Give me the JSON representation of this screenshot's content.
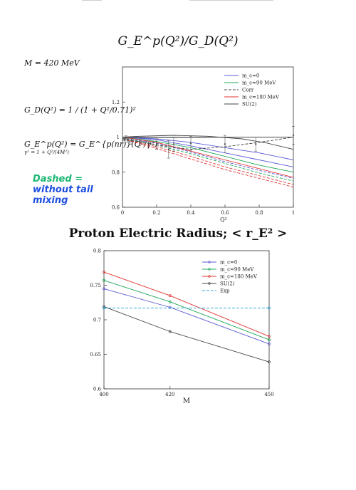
{
  "page": {
    "title": "G_E^p(Q²)/G_D(Q²)",
    "mass_label": "M = 420 MeV",
    "dipole_formula": "G_D(Q²) = 1 / (1 + Q²/0.71)²",
    "ge_formula": "G_E^p(Q²) = G_E^{p(nr)}(Q²/γ²)",
    "gamma_formula": "γ² = 1 + Q²/(4M²)",
    "note_line1": "Dashed =",
    "note_line2": "without tail",
    "note_line3": "mixing",
    "section_title": "Proton Electric Radius; < r_E² >"
  },
  "chart_data": [
    {
      "type": "line",
      "title": "G_E^p(Q²)/G_D(Q²)",
      "xlabel": "Q²",
      "ylabel": "",
      "xlim": [
        0,
        1
      ],
      "ylim": [
        0.6,
        1.4
      ],
      "xticks": [
        "0",
        "0.2",
        "0.4",
        "0.6",
        "0.8",
        "1"
      ],
      "yticks": [
        "0.6",
        "0.8",
        "1",
        "1.2"
      ],
      "legend_position": "top-right",
      "legend": [
        {
          "label": "m_c=0",
          "color": "#5b5bd6",
          "dash": "solid"
        },
        {
          "label": "m_c=90 MeV",
          "color": "#1ea85a",
          "dash": "solid"
        },
        {
          "label": "Corr",
          "color": "#444444",
          "dash": "dashed"
        },
        {
          "label": "m_c=180 MeV",
          "color": "#e03434",
          "dash": "solid"
        },
        {
          "label": "SU(2)",
          "color": "#444444",
          "dash": "solid"
        }
      ],
      "series": [
        {
          "name": "m_c=0",
          "color": "#5b5bd6",
          "dash": "solid",
          "x": [
            0,
            0.2,
            0.4,
            0.6,
            0.8,
            1.0
          ],
          "y": [
            1.0,
            0.99,
            0.97,
            0.94,
            0.91,
            0.87
          ]
        },
        {
          "name": "",
          "color": "#5b5bd6",
          "dash": "solid",
          "x": [
            0,
            0.2,
            0.4,
            0.6,
            0.8,
            1.0
          ],
          "y": [
            1.0,
            0.985,
            0.95,
            0.91,
            0.87,
            0.83
          ]
        },
        {
          "name": "m_c=90 MeV",
          "color": "#1ea85a",
          "dash": "solid",
          "x": [
            0,
            0.2,
            0.4,
            0.6,
            0.8,
            1.0
          ],
          "y": [
            1.0,
            0.975,
            0.94,
            0.89,
            0.84,
            0.8
          ]
        },
        {
          "name": "m_c=180 MeV",
          "color": "#e03434",
          "dash": "solid",
          "x": [
            0,
            0.2,
            0.4,
            0.6,
            0.8,
            1.0
          ],
          "y": [
            1.0,
            0.97,
            0.92,
            0.87,
            0.82,
            0.77
          ]
        },
        {
          "name": "",
          "color": "#5b5bd6",
          "dash": "dashed",
          "x": [
            0,
            0.2,
            0.4,
            0.6,
            0.8,
            1.0
          ],
          "y": [
            0.995,
            0.965,
            0.915,
            0.86,
            0.81,
            0.765
          ]
        },
        {
          "name": "",
          "color": "#1ea85a",
          "dash": "dashed",
          "x": [
            0,
            0.2,
            0.4,
            0.6,
            0.8,
            1.0
          ],
          "y": [
            0.995,
            0.955,
            0.905,
            0.85,
            0.795,
            0.75
          ]
        },
        {
          "name": "",
          "color": "#e03434",
          "dash": "dashed",
          "x": [
            0,
            0.2,
            0.4,
            0.6,
            0.8,
            1.0
          ],
          "y": [
            0.99,
            0.945,
            0.89,
            0.83,
            0.78,
            0.73
          ]
        },
        {
          "name": "",
          "color": "#e03434",
          "dash": "dashed",
          "x": [
            0,
            0.2,
            0.4,
            0.6,
            0.8,
            1.0
          ],
          "y": [
            0.99,
            0.935,
            0.875,
            0.815,
            0.765,
            0.715
          ]
        },
        {
          "name": "Corr",
          "color": "#444444",
          "dash": "dashed",
          "x": [
            0,
            0.2,
            0.4,
            0.6,
            0.8,
            1.0
          ],
          "y": [
            0.99,
            0.955,
            0.93,
            0.945,
            0.97,
            1.0
          ]
        },
        {
          "name": "SU(2)",
          "color": "#444444",
          "dash": "solid",
          "x": [
            0,
            0.1,
            0.3,
            0.5,
            0.7,
            0.85,
            1.0
          ],
          "y": [
            1.0,
            1.005,
            1.01,
            1.005,
            0.99,
            0.965,
            0.93
          ]
        },
        {
          "name": "",
          "color": "#444444",
          "dash": "solid",
          "x": [
            0,
            0.2,
            0.4,
            0.6,
            0.8,
            1.0
          ],
          "y": [
            1.0,
            0.998,
            0.998,
            0.999,
            1.0,
            1.0
          ]
        }
      ],
      "error_points": {
        "color": "#555555",
        "points": [
          {
            "x": 0.01,
            "y": 0.99,
            "err": 0.01
          },
          {
            "x": 0.02,
            "y": 0.995,
            "err": 0.012
          },
          {
            "x": 0.03,
            "y": 0.985,
            "err": 0.015
          },
          {
            "x": 0.05,
            "y": 0.98,
            "err": 0.02
          },
          {
            "x": 0.1,
            "y": 0.975,
            "err": 0.025
          },
          {
            "x": 0.2,
            "y": 0.96,
            "err": 0.03
          },
          {
            "x": 0.27,
            "y": 0.93,
            "err": 0.05
          },
          {
            "x": 0.3,
            "y": 0.96,
            "err": 0.04
          },
          {
            "x": 0.4,
            "y": 0.965,
            "err": 0.04
          },
          {
            "x": 0.6,
            "y": 0.96,
            "err": 0.05
          },
          {
            "x": 0.78,
            "y": 0.96,
            "err": 0.04
          },
          {
            "x": 1.0,
            "y": 1.01,
            "err": 0.05
          }
        ]
      }
    },
    {
      "type": "line",
      "title": "Proton Electric Radius; < r_E² >",
      "xlabel": "M",
      "ylabel": "",
      "xlim": [
        400,
        450
      ],
      "ylim": [
        0.6,
        0.8
      ],
      "xticks": [
        "400",
        "420",
        "450"
      ],
      "yticks": [
        "0.6",
        "0.65",
        "0.7",
        "0.75",
        "0.8"
      ],
      "legend_position": "top-right",
      "legend": [
        {
          "label": "m_c=0",
          "color": "#5b5bd6",
          "dash": "solid"
        },
        {
          "label": "m_c=90 MeV",
          "color": "#1ea85a",
          "dash": "solid"
        },
        {
          "label": "m_c=180 MeV",
          "color": "#e03434",
          "dash": "solid"
        },
        {
          "label": "SU(2)",
          "color": "#444444",
          "dash": "solid"
        },
        {
          "label": "Exp",
          "color": "#33a8d8",
          "dash": "dashed"
        }
      ],
      "series": [
        {
          "name": "m_c=0",
          "color": "#5b5bd6",
          "dash": "solid",
          "x": [
            400,
            420,
            450
          ],
          "y": [
            0.745,
            0.718,
            0.665
          ]
        },
        {
          "name": "m_c=90 MeV",
          "color": "#1ea85a",
          "dash": "solid",
          "x": [
            400,
            420,
            450
          ],
          "y": [
            0.757,
            0.726,
            0.671
          ]
        },
        {
          "name": "m_c=180 MeV",
          "color": "#e03434",
          "dash": "solid",
          "x": [
            400,
            420,
            450
          ],
          "y": [
            0.769,
            0.735,
            0.676
          ]
        },
        {
          "name": "SU(2)",
          "color": "#444444",
          "dash": "solid",
          "x": [
            400,
            420,
            450
          ],
          "y": [
            0.719,
            0.683,
            0.639
          ]
        },
        {
          "name": "Exp",
          "color": "#33a8d8",
          "dash": "dashed",
          "x": [
            400,
            450
          ],
          "y": [
            0.717,
            0.717
          ]
        }
      ]
    }
  ]
}
